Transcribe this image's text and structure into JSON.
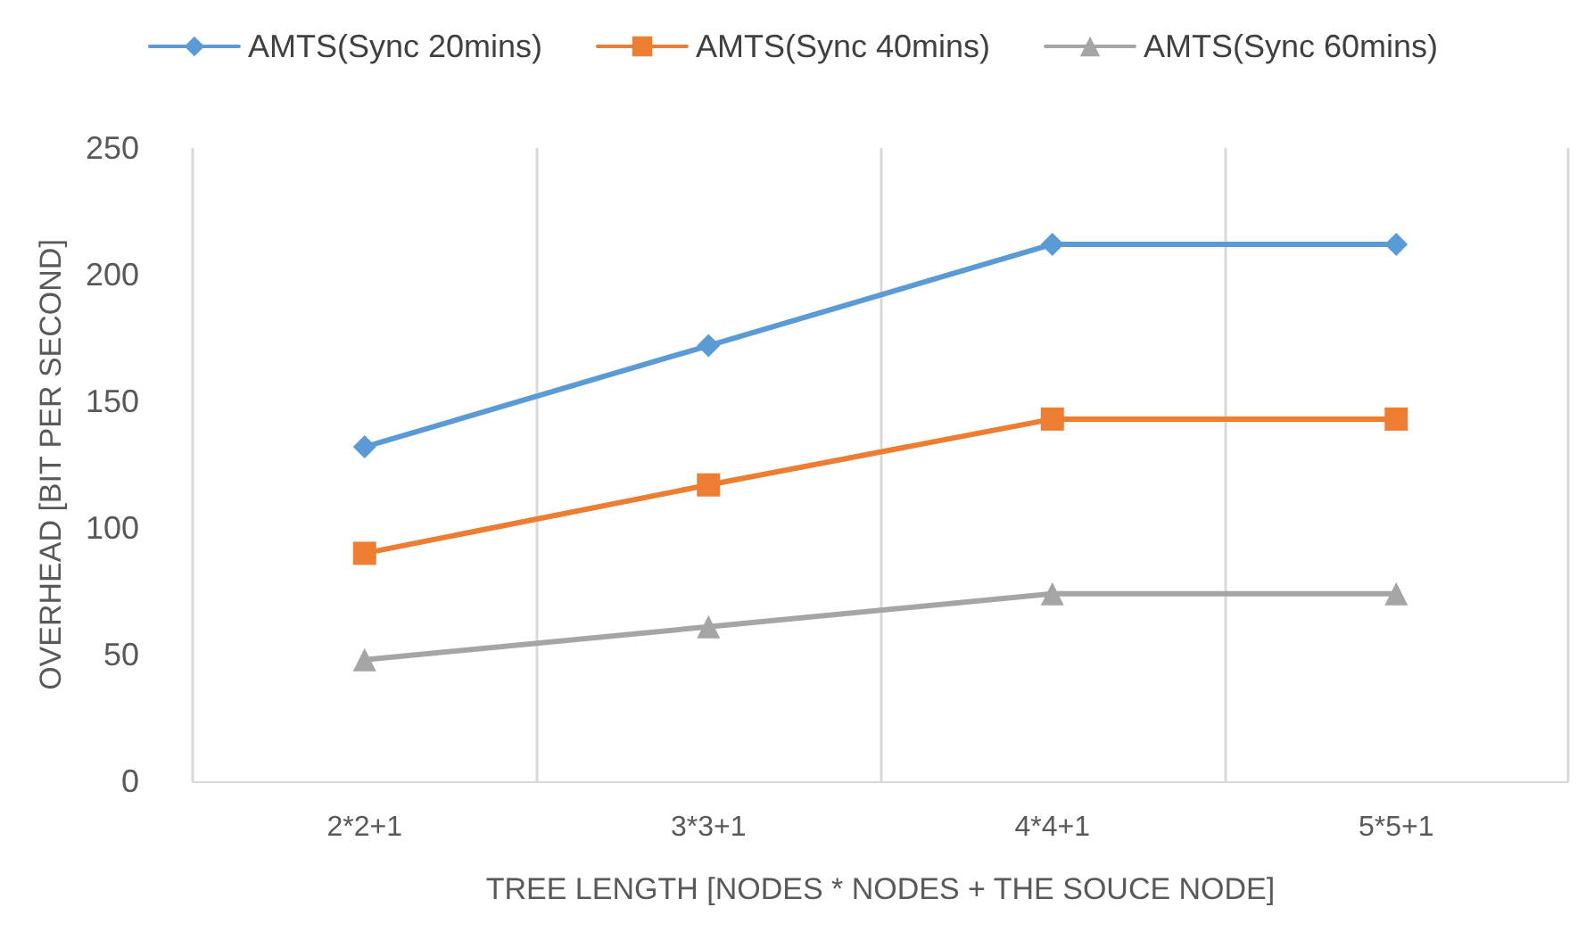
{
  "chart_data": {
    "type": "line",
    "xlabel": "TREE LENGTH [NODES * NODES + THE SOUCE NODE]",
    "ylabel": "OVERHEAD [BIT PER SECOND]",
    "categories": [
      "2*2+1",
      "3*3+1",
      "4*4+1",
      "5*5+1"
    ],
    "series": [
      {
        "name": "AMTS(Sync 20mins)",
        "color": "#5b9bd5",
        "marker": "diamond",
        "values": [
          132,
          172,
          212,
          212
        ]
      },
      {
        "name": "AMTS(Sync 40mins)",
        "color": "#ed7d31",
        "marker": "square",
        "values": [
          90,
          117,
          143,
          143
        ]
      },
      {
        "name": "AMTS(Sync 60mins)",
        "color": "#a5a5a5",
        "marker": "triangle",
        "values": [
          48,
          61,
          74,
          74
        ]
      }
    ],
    "ylim": [
      0,
      250
    ],
    "yticks": [
      0,
      50,
      100,
      150,
      200,
      250
    ],
    "grid": "x",
    "legend": "top",
    "line_style": "solid"
  }
}
